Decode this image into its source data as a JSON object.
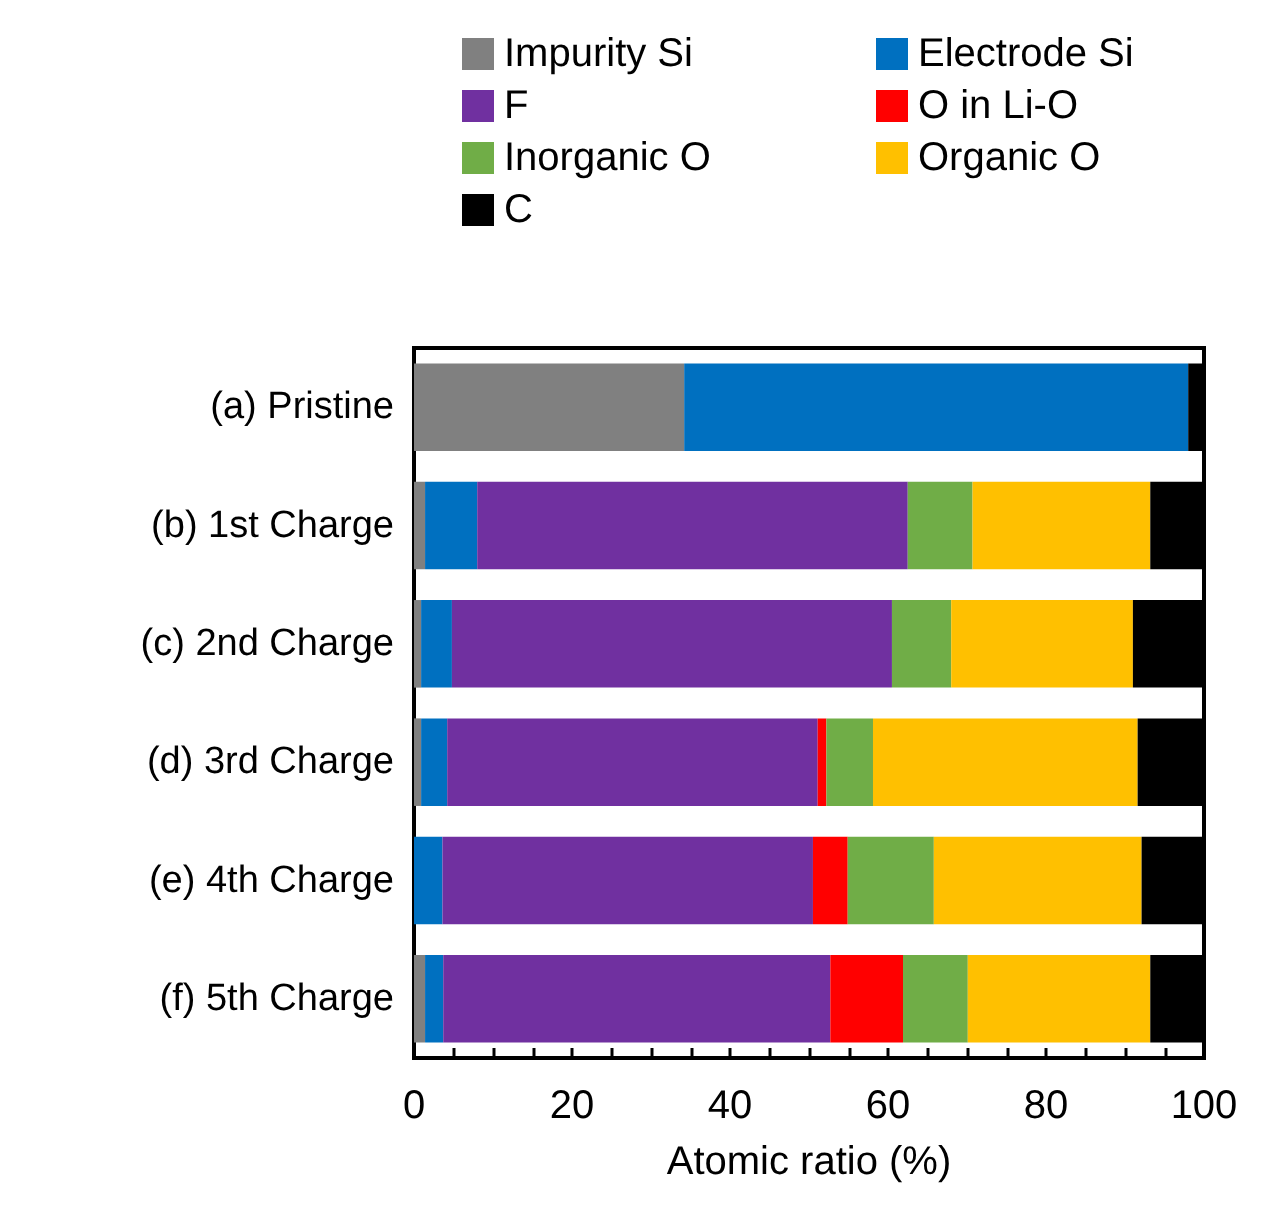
{
  "chart_data": {
    "type": "bar",
    "orientation": "horizontal",
    "stacked": true,
    "xlabel": "Atomic ratio (%)",
    "legend": "top",
    "grid": false,
    "categories": [
      "(a) Pristine",
      "(b) 1st Charge",
      "(c) 2nd Charge",
      "(d) 3rd Charge",
      "(e) 4th Charge",
      "(f) 5th Charge"
    ],
    "xlim": [
      0,
      100
    ],
    "xticks": [
      0,
      {
        "value": 5,
        "label": null
      },
      {
        "value": 10,
        "label": null
      },
      {
        "value": 15,
        "label": null
      },
      20,
      {
        "value": 25,
        "label": null
      },
      {
        "value": 30,
        "label": null
      },
      {
        "value": 35,
        "label": null
      },
      40,
      {
        "value": 45,
        "label": null
      },
      {
        "value": 50,
        "label": null
      },
      {
        "value": 55,
        "label": null
      },
      60,
      {
        "value": 65,
        "label": null
      },
      {
        "value": 70,
        "label": null
      },
      {
        "value": 75,
        "label": null
      },
      80,
      {
        "value": 85,
        "label": null
      },
      {
        "value": 90,
        "label": null
      },
      {
        "value": 95,
        "label": null
      },
      100
    ],
    "series": [
      {
        "name": "Impurity Si",
        "color": "#808080",
        "values": [
          34.2,
          1.4,
          0.9,
          0.9,
          0,
          1.4
        ]
      },
      {
        "name": "Electrode Si",
        "color": "#0070c0",
        "values": [
          63.8,
          6.6,
          3.9,
          3.3,
          3.6,
          2.3
        ]
      },
      {
        "name": "F",
        "color": "#7030a0",
        "values": [
          0,
          54.5,
          55.7,
          46.9,
          46.9,
          49.0
        ]
      },
      {
        "name": "O in Li-O",
        "color": "#ff0000",
        "values": [
          0,
          0,
          0,
          1.1,
          4.4,
          9.2
        ]
      },
      {
        "name": "Inorganic O",
        "color": "#70ad47",
        "values": [
          0,
          8.2,
          7.5,
          5.9,
          10.9,
          8.2
        ]
      },
      {
        "name": "Organic O",
        "color": "#ffc000",
        "values": [
          0,
          22.5,
          23.0,
          33.5,
          26.3,
          23.1
        ]
      },
      {
        "name": "C",
        "color": "#000000",
        "values": [
          2.0,
          6.8,
          9.0,
          8.4,
          7.9,
          6.8
        ]
      }
    ]
  }
}
